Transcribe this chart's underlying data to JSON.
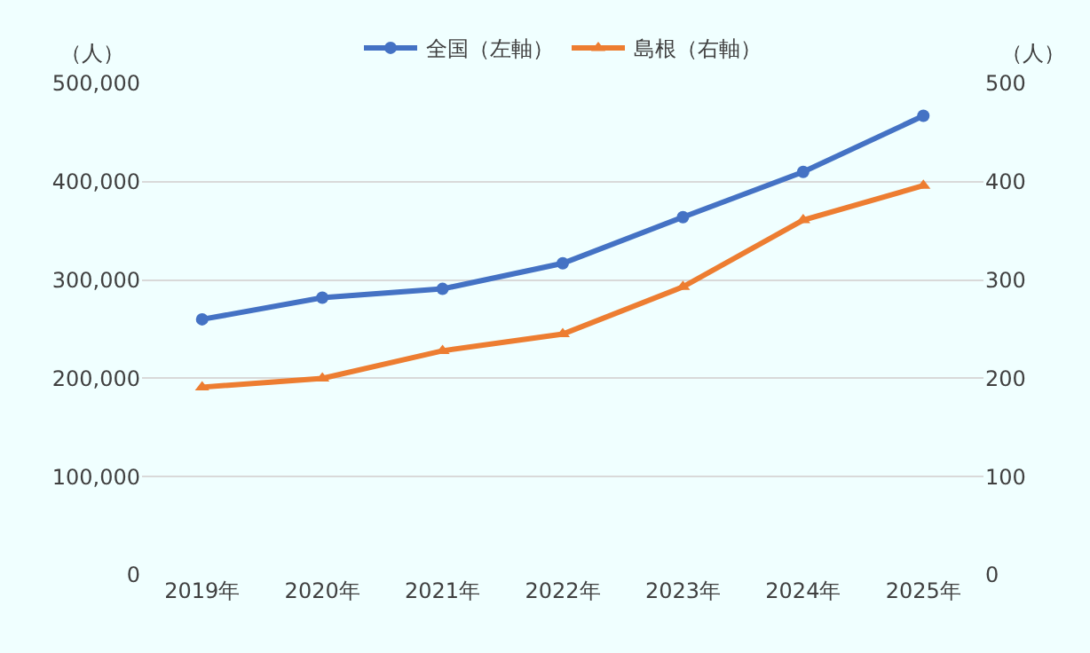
{
  "chart_data": {
    "type": "line",
    "categories": [
      "2019年",
      "2020年",
      "2021年",
      "2022年",
      "2023年",
      "2024年",
      "2025年"
    ],
    "series": [
      {
        "name": "全国（左軸）",
        "color": "#4472c4",
        "marker": "circle",
        "values": [
          260000,
          282000,
          291000,
          317000,
          364000,
          410000,
          467000
        ]
      },
      {
        "name": "島根（右軸）",
        "color": "#ed7d31",
        "marker": "triangle",
        "axis": "y2",
        "values": [
          191,
          200,
          228,
          245,
          293,
          361,
          396
        ]
      }
    ],
    "ylim": [
      0,
      500000
    ],
    "yticks": [
      0,
      {
        "value": 100000,
        "label": "100,000"
      },
      {
        "value": 200000,
        "label": "200,000"
      },
      {
        "value": 300000,
        "label": "300,000"
      },
      {
        "value": 400000,
        "label": "400,000"
      },
      {
        "value": 500000,
        "label": "500,000"
      }
    ],
    "y2lim": [
      0,
      500
    ],
    "y2ticks": [
      0,
      100,
      200,
      300,
      400,
      500
    ],
    "annotations": [
      "（人）",
      "（人）"
    ],
    "grid": "y",
    "legend": "top",
    "line_style": "solid"
  }
}
